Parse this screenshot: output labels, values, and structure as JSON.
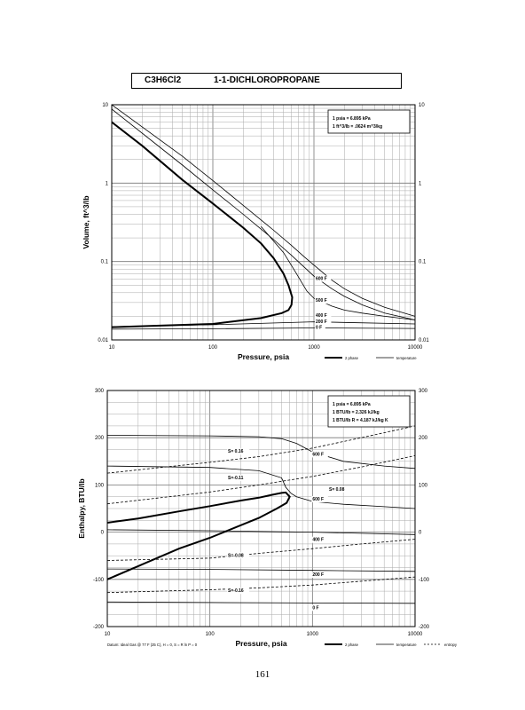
{
  "header": {
    "formula": "C3H6Cl2",
    "name": "1-1-DICHLOROPROPANE"
  },
  "page_number": "161",
  "chart_data": [
    {
      "type": "line",
      "scale": "log-log",
      "xlabel": "Pressure,  psia",
      "ylabel": "Volume, ft^3/lb",
      "xlim": [
        10,
        10000
      ],
      "ylim": [
        0.01,
        10
      ],
      "x_ticks": [
        "10",
        "100",
        "1000",
        "10000"
      ],
      "y_ticks": [
        "0.01",
        "0.1",
        "1",
        "10"
      ],
      "conversions": [
        "1 psia  =  6.895 kPa",
        "1 ft^3/lb  =  .0624 m^3/kg"
      ],
      "legend": [
        "2 phase",
        "temperature"
      ],
      "series": [
        {
          "name": "2 phase",
          "x": [
            10,
            20,
            50,
            100,
            200,
            300,
            400,
            500,
            560,
            610,
            600,
            560,
            480,
            300,
            100,
            30,
            10
          ],
          "y": [
            6,
            3.0,
            1.1,
            0.55,
            0.27,
            0.17,
            0.11,
            0.07,
            0.05,
            0.035,
            0.028,
            0.024,
            0.022,
            0.019,
            0.016,
            0.0152,
            0.0145
          ]
        },
        {
          "name": "",
          "x": [
            10,
            50,
            100,
            200,
            400,
            600,
            800,
            1000,
            1500,
            2000,
            3000,
            5000,
            10000
          ],
          "y": [
            8.8,
            1.7,
            0.82,
            0.4,
            0.19,
            0.12,
            0.085,
            0.065,
            0.045,
            0.036,
            0.028,
            0.022,
            0.018
          ]
        },
        {
          "name": "",
          "x": [
            10,
            50,
            100,
            200,
            400,
            600,
            800,
            1000,
            1500,
            2000,
            3000,
            5000,
            10000
          ],
          "y": [
            10,
            2.2,
            1.08,
            0.52,
            0.25,
            0.16,
            0.115,
            0.09,
            0.058,
            0.045,
            0.034,
            0.026,
            0.02
          ]
        },
        {
          "name": "",
          "x": [
            300,
            500,
            650,
            750,
            850,
            1000,
            1500,
            2000,
            3000,
            5000,
            10000
          ],
          "y": [
            0.28,
            0.13,
            0.075,
            0.055,
            0.042,
            0.034,
            0.027,
            0.024,
            0.022,
            0.02,
            0.018
          ]
        },
        {
          "name": "",
          "x": [
            10,
            100,
            1000,
            10000
          ],
          "y": [
            0.0148,
            0.0156,
            0.017,
            0.016
          ]
        },
        {
          "name": "",
          "x": [
            10,
            100,
            1000,
            10000
          ],
          "y": [
            0.0137,
            0.0139,
            0.0142,
            0.014
          ]
        }
      ],
      "curve_labels": [
        {
          "text": "600 F",
          "x": 1040,
          "y": 0.058
        },
        {
          "text": "500 F",
          "x": 1040,
          "y": 0.0305
        },
        {
          "text": "400 F",
          "x": 1040,
          "y": 0.0196
        },
        {
          "text": "200 F",
          "x": 1040,
          "y": 0.0165
        },
        {
          "text": "0 F",
          "x": 1040,
          "y": 0.0139
        }
      ]
    },
    {
      "type": "line",
      "scale": "log-x",
      "xlabel": "Pressure,  psia",
      "ylabel": "Enthalpy, BTU/lb",
      "xlim": [
        10,
        10000
      ],
      "ylim": [
        -200,
        300
      ],
      "x_ticks": [
        "10",
        "100",
        "1000",
        "10000"
      ],
      "y_ticks": [
        "-200",
        "-100",
        "0",
        "100",
        "200",
        "300"
      ],
      "conversions": [
        "1 psia  =  6.895 kPa",
        "1 BTU/lb  =  2.326 kJ/kg",
        "1 BTU/lb R  =  4.187 kJ/kg K"
      ],
      "footnote": "Datum: Ideal Gas @ 77 F (25 C),  H = 0,  S = R ln P = 0",
      "legend": [
        "2 phase",
        "temperature",
        "entropy"
      ],
      "series": [
        {
          "name": "2 phase",
          "x": [
            10,
            20,
            50,
            100,
            200,
            300,
            400,
            500,
            550,
            600,
            560,
            450,
            300,
            100,
            50,
            20,
            10
          ],
          "y": [
            20,
            29,
            44,
            55,
            67,
            73,
            79,
            83,
            84,
            75,
            62,
            50,
            30,
            -12,
            -35,
            -72,
            -100
          ]
        },
        {
          "name": "",
          "x": [
            10,
            100,
            300,
            500,
            700,
            1000,
            2000,
            5000,
            10000
          ],
          "y": [
            205,
            204,
            202,
            198,
            188,
            170,
            150,
            140,
            135
          ]
        },
        {
          "name": "",
          "x": [
            10,
            100,
            300,
            500,
            550,
            620,
            700,
            1000,
            2000,
            5000,
            10000
          ],
          "y": [
            140,
            137,
            130,
            115,
            95,
            82,
            75,
            65,
            59,
            54,
            50
          ]
        },
        {
          "name": "",
          "x": [
            10,
            100,
            1000,
            10000
          ],
          "y": [
            5,
            3,
            0,
            -5
          ]
        },
        {
          "name": "",
          "x": [
            10,
            100,
            1000,
            10000
          ],
          "y": [
            -78,
            -79,
            -81,
            -83
          ]
        },
        {
          "name": "",
          "x": [
            10,
            100,
            1000,
            10000
          ],
          "y": [
            -148,
            -149,
            -150,
            -151
          ]
        },
        {
          "name": "",
          "x": [
            10,
            100,
            300,
            1000,
            3000,
            10000
          ],
          "y": [
            125,
            148,
            160,
            178,
            200,
            225
          ]
        },
        {
          "name": "",
          "x": [
            10,
            100,
            300,
            1000,
            3000,
            10000
          ],
          "y": [
            60,
            85,
            100,
            118,
            138,
            162
          ]
        },
        {
          "name": "",
          "x": [
            10,
            100,
            300,
            1000,
            3000,
            10000
          ],
          "y": [
            -60,
            -55,
            -45,
            -35,
            -25,
            -15
          ]
        },
        {
          "name": "",
          "x": [
            10,
            100,
            300,
            1000,
            3000,
            10000
          ],
          "y": [
            -128,
            -122,
            -118,
            -112,
            -104,
            -95
          ]
        }
      ],
      "curve_labels": [
        {
          "text": "S= 0.16",
          "x": 150,
          "y": 168
        },
        {
          "text": "S=-0.11",
          "x": 150,
          "y": 112
        },
        {
          "text": "S=-0.08",
          "x": 150,
          "y": -52
        },
        {
          "text": "S=-0.16",
          "x": 150,
          "y": -127
        },
        {
          "text": "S= 0.08",
          "x": 1450,
          "y": 88
        },
        {
          "text": "600 F",
          "x": 1000,
          "y": 162
        },
        {
          "text": "600 F",
          "x": 1000,
          "y": 67
        },
        {
          "text": "400 F",
          "x": 1000,
          "y": -19
        },
        {
          "text": "200 F",
          "x": 1000,
          "y": -93
        },
        {
          "text": "0 F",
          "x": 1000,
          "y": -163
        }
      ]
    }
  ]
}
